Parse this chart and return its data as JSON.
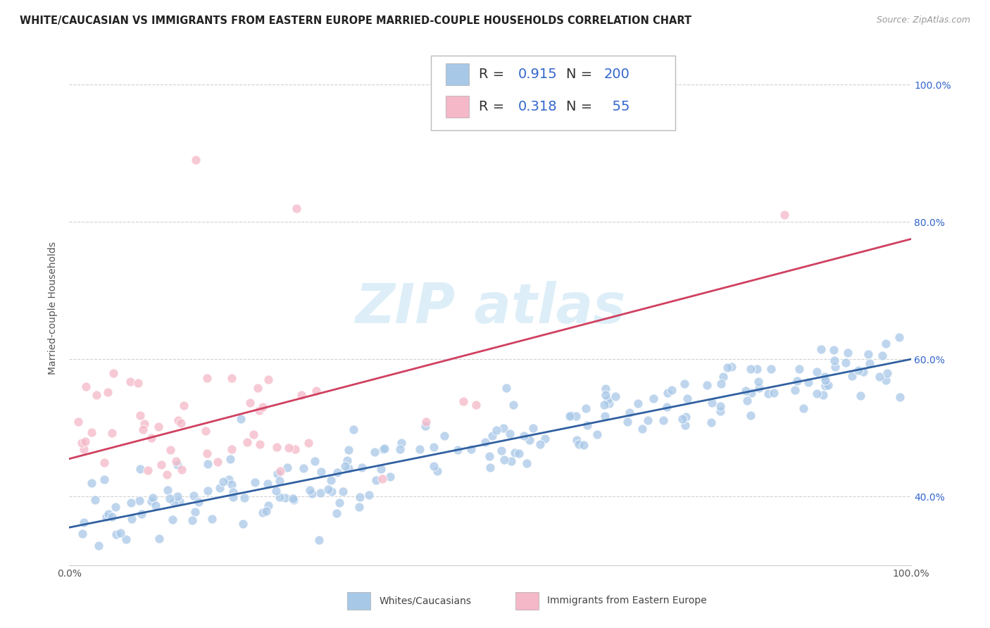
{
  "title": "WHITE/CAUCASIAN VS IMMIGRANTS FROM EASTERN EUROPE MARRIED-COUPLE HOUSEHOLDS CORRELATION CHART",
  "source": "Source: ZipAtlas.com",
  "ylabel": "Married-couple Households",
  "xlim": [
    0.0,
    1.0
  ],
  "ylim": [
    0.3,
    1.05
  ],
  "yticks": [
    0.4,
    0.6,
    0.8,
    1.0
  ],
  "ytick_labels": [
    "40.0%",
    "60.0%",
    "80.0%",
    "100.0%"
  ],
  "blue_R": 0.915,
  "blue_N": 200,
  "pink_R": 0.318,
  "pink_N": 55,
  "blue_color": "#a8c8e8",
  "pink_color": "#f4b8c8",
  "blue_line_color": "#3060a0",
  "pink_line_color": "#d04060",
  "watermark_color": "#ddeef8",
  "background_color": "#ffffff",
  "grid_color": "#cccccc",
  "title_fontsize": 10.5,
  "source_fontsize": 9,
  "label_fontsize": 10,
  "tick_fontsize": 10,
  "legend_fontsize": 14,
  "stat_color": "#3366cc",
  "blue_intercept": 0.355,
  "blue_slope": 0.245,
  "pink_intercept": 0.455,
  "pink_slope": 0.32
}
